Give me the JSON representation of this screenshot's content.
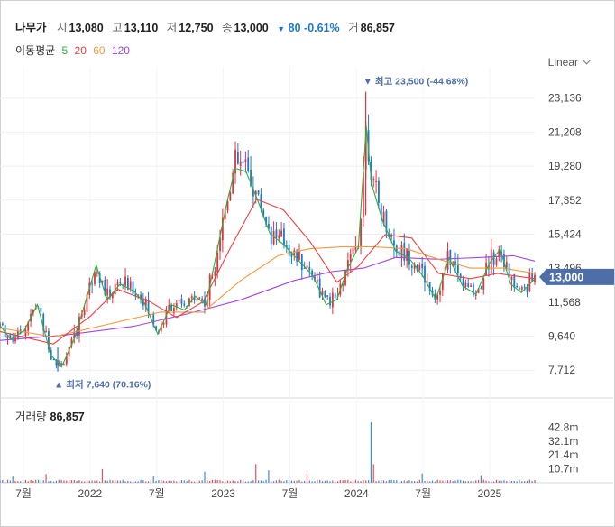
{
  "header": {
    "name": "나무가",
    "open_label": "시",
    "open": "13,080",
    "high_label": "고",
    "high": "13,110",
    "low_label": "저",
    "low": "12,750",
    "close_label": "종",
    "close": "13,000",
    "change_arrow": "▼",
    "change": "80",
    "change_pct": "-0.61%",
    "volume_label": "거",
    "volume": "86,857"
  },
  "ma": {
    "label": "이동평균",
    "p5": "5",
    "p20": "20",
    "p60": "60",
    "p120": "120"
  },
  "scale_mode": "Linear",
  "volume_panel": {
    "label": "거래량",
    "value": "86,857"
  },
  "colors": {
    "up": "#e0323c",
    "down": "#1e78d2",
    "ma5": "#2eae3c",
    "ma20": "#ee4040",
    "ma60": "#f39a3c",
    "ma120": "#a445e0",
    "price_tag": "#4e6ea8",
    "grid": "#efefef"
  },
  "chart_data": {
    "type": "candlestick",
    "y_ticks": [
      "23,136",
      "21,208",
      "19,280",
      "17,352",
      "15,424",
      "13,496",
      "11,568",
      "9,640",
      "7,712"
    ],
    "ylim": [
      6700,
      24400
    ],
    "x_labels": [
      "7월",
      "2022",
      "7월",
      "2023",
      "7월",
      "2024",
      "7월",
      "2025"
    ],
    "last_price_tag": "13,000",
    "max_annotation": "최고 23,500 (-44.68%)",
    "min_annotation": "최저 7,640 (70.16%)",
    "max_value": 23500,
    "min_value": 7640,
    "volume_ticks": [
      "42.8m",
      "32.1m",
      "21.4m",
      "10.7m"
    ],
    "volume_max": 48000000,
    "close_series": [
      {
        "t": 0.0,
        "v": 10300
      },
      {
        "t": 0.02,
        "v": 9500
      },
      {
        "t": 0.045,
        "v": 10000
      },
      {
        "t": 0.07,
        "v": 11500
      },
      {
        "t": 0.095,
        "v": 8600
      },
      {
        "t": 0.115,
        "v": 7900
      },
      {
        "t": 0.14,
        "v": 9600
      },
      {
        "t": 0.16,
        "v": 11700
      },
      {
        "t": 0.18,
        "v": 13800
      },
      {
        "t": 0.2,
        "v": 11800
      },
      {
        "t": 0.225,
        "v": 12700
      },
      {
        "t": 0.25,
        "v": 12300
      },
      {
        "t": 0.27,
        "v": 11600
      },
      {
        "t": 0.295,
        "v": 9800
      },
      {
        "t": 0.32,
        "v": 11500
      },
      {
        "t": 0.345,
        "v": 11200
      },
      {
        "t": 0.365,
        "v": 12000
      },
      {
        "t": 0.385,
        "v": 11500
      },
      {
        "t": 0.405,
        "v": 14500
      },
      {
        "t": 0.425,
        "v": 17500
      },
      {
        "t": 0.44,
        "v": 19400
      },
      {
        "t": 0.46,
        "v": 19200
      },
      {
        "t": 0.48,
        "v": 17700
      },
      {
        "t": 0.505,
        "v": 15600
      },
      {
        "t": 0.53,
        "v": 15000
      },
      {
        "t": 0.56,
        "v": 14000
      },
      {
        "t": 0.585,
        "v": 13200
      },
      {
        "t": 0.61,
        "v": 11500
      },
      {
        "t": 0.63,
        "v": 11800
      },
      {
        "t": 0.65,
        "v": 13600
      },
      {
        "t": 0.67,
        "v": 14800
      },
      {
        "t": 0.685,
        "v": 21800
      },
      {
        "t": 0.695,
        "v": 18500
      },
      {
        "t": 0.715,
        "v": 16400
      },
      {
        "t": 0.74,
        "v": 14600
      },
      {
        "t": 0.765,
        "v": 14200
      },
      {
        "t": 0.79,
        "v": 13200
      },
      {
        "t": 0.815,
        "v": 11800
      },
      {
        "t": 0.84,
        "v": 14200
      },
      {
        "t": 0.865,
        "v": 12600
      },
      {
        "t": 0.89,
        "v": 12100
      },
      {
        "t": 0.915,
        "v": 13900
      },
      {
        "t": 0.935,
        "v": 14700
      },
      {
        "t": 0.955,
        "v": 12700
      },
      {
        "t": 0.975,
        "v": 12200
      },
      {
        "t": 1.0,
        "v": 13000
      }
    ],
    "ma20_series": [
      {
        "t": 0.0,
        "v": 9900
      },
      {
        "t": 0.1,
        "v": 9200
      },
      {
        "t": 0.17,
        "v": 10800
      },
      {
        "t": 0.22,
        "v": 12300
      },
      {
        "t": 0.28,
        "v": 11600
      },
      {
        "t": 0.33,
        "v": 10700
      },
      {
        "t": 0.38,
        "v": 11600
      },
      {
        "t": 0.43,
        "v": 14600
      },
      {
        "t": 0.48,
        "v": 17400
      },
      {
        "t": 0.53,
        "v": 16800
      },
      {
        "t": 0.58,
        "v": 15000
      },
      {
        "t": 0.63,
        "v": 12700
      },
      {
        "t": 0.67,
        "v": 13600
      },
      {
        "t": 0.72,
        "v": 15400
      },
      {
        "t": 0.77,
        "v": 15200
      },
      {
        "t": 0.82,
        "v": 13200
      },
      {
        "t": 0.88,
        "v": 12900
      },
      {
        "t": 0.93,
        "v": 13200
      },
      {
        "t": 1.0,
        "v": 12900
      }
    ],
    "ma60_series": [
      {
        "t": 0.0,
        "v": 10100
      },
      {
        "t": 0.1,
        "v": 9600
      },
      {
        "t": 0.2,
        "v": 10300
      },
      {
        "t": 0.3,
        "v": 11000
      },
      {
        "t": 0.38,
        "v": 11000
      },
      {
        "t": 0.45,
        "v": 12800
      },
      {
        "t": 0.52,
        "v": 14200
      },
      {
        "t": 0.58,
        "v": 14600
      },
      {
        "t": 0.64,
        "v": 14700
      },
      {
        "t": 0.7,
        "v": 14700
      },
      {
        "t": 0.76,
        "v": 14600
      },
      {
        "t": 0.82,
        "v": 14000
      },
      {
        "t": 0.88,
        "v": 13500
      },
      {
        "t": 0.94,
        "v": 13500
      },
      {
        "t": 1.0,
        "v": 13200
      }
    ],
    "ma120_series": [
      {
        "t": 0.0,
        "v": 9400
      },
      {
        "t": 0.12,
        "v": 9700
      },
      {
        "t": 0.25,
        "v": 10200
      },
      {
        "t": 0.35,
        "v": 10900
      },
      {
        "t": 0.45,
        "v": 11700
      },
      {
        "t": 0.55,
        "v": 12800
      },
      {
        "t": 0.62,
        "v": 13300
      },
      {
        "t": 0.68,
        "v": 13500
      },
      {
        "t": 0.74,
        "v": 14100
      },
      {
        "t": 0.82,
        "v": 14000
      },
      {
        "t": 0.9,
        "v": 14100
      },
      {
        "t": 0.96,
        "v": 14200
      },
      {
        "t": 1.0,
        "v": 13900
      }
    ]
  }
}
